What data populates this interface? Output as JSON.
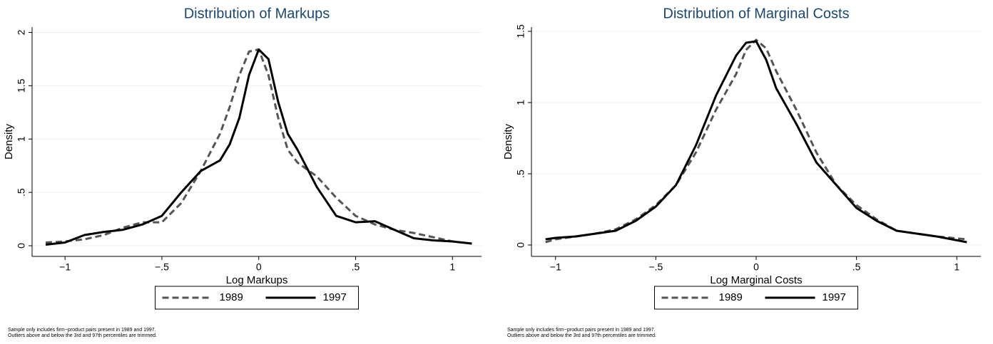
{
  "chart_data": [
    {
      "type": "line",
      "title": "Distribution of Markups",
      "x_label": "Log Markups",
      "y_label": "Density",
      "x": [
        -1.1,
        -1,
        -0.9,
        -0.8,
        -0.7,
        -0.6,
        -0.5,
        -0.4,
        -0.3,
        -0.2,
        -0.15,
        -0.1,
        -0.05,
        0,
        0.05,
        0.1,
        0.15,
        0.2,
        0.3,
        0.4,
        0.5,
        0.6,
        0.7,
        0.8,
        0.9,
        1,
        1.1
      ],
      "series": [
        {
          "name": "1989",
          "color": "#555555",
          "dashed": true,
          "values": [
            0.03,
            0.04,
            0.06,
            0.1,
            0.17,
            0.22,
            0.22,
            0.4,
            0.7,
            1.05,
            1.3,
            1.6,
            1.82,
            1.84,
            1.6,
            1.2,
            0.9,
            0.78,
            0.65,
            0.45,
            0.28,
            0.2,
            0.15,
            0.12,
            0.08,
            0.04,
            0.02
          ]
        },
        {
          "name": "1997",
          "color": "#000000",
          "dashed": false,
          "values": [
            0.01,
            0.03,
            0.1,
            0.13,
            0.15,
            0.2,
            0.28,
            0.5,
            0.7,
            0.8,
            0.95,
            1.2,
            1.6,
            1.84,
            1.75,
            1.35,
            1.05,
            0.9,
            0.55,
            0.28,
            0.22,
            0.23,
            0.15,
            0.07,
            0.05,
            0.04,
            0.02
          ]
        }
      ],
      "xlim": [
        -1.17,
        1.15
      ],
      "xticks": [
        {
          "value": -1,
          "label": "−1"
        },
        {
          "value": -0.5,
          "label": "−.5"
        },
        0,
        {
          "value": 0.5,
          "label": ".5"
        },
        1
      ],
      "ylim": [
        -0.1,
        2.05
      ],
      "yticks": [
        0,
        {
          "value": 0.5,
          "label": ".5"
        },
        1,
        {
          "value": 1.5,
          "label": "1.5"
        },
        2
      ],
      "grid": true,
      "legend": "bottom",
      "notes": [
        "Sample only includes firm−product pairs present in 1989 and 1997.",
        "Outliers above and below the 3rd and 97th percentiles are trimmed."
      ]
    },
    {
      "type": "line",
      "title": "Distribution of Marginal Costs",
      "x_label": "Log Marginal Costs",
      "y_label": "Density",
      "x": [
        -1.05,
        -1,
        -0.9,
        -0.8,
        -0.7,
        -0.6,
        -0.5,
        -0.4,
        -0.3,
        -0.2,
        -0.1,
        -0.05,
        0,
        0.05,
        0.1,
        0.2,
        0.3,
        0.4,
        0.5,
        0.6,
        0.7,
        0.8,
        0.9,
        1.05
      ],
      "series": [
        {
          "name": "1989",
          "color": "#555555",
          "dashed": true,
          "values": [
            0.02,
            0.04,
            0.06,
            0.08,
            0.11,
            0.18,
            0.28,
            0.42,
            0.65,
            0.95,
            1.2,
            1.37,
            1.44,
            1.38,
            1.22,
            0.95,
            0.65,
            0.42,
            0.28,
            0.18,
            0.1,
            0.08,
            0.06,
            0.04
          ]
        },
        {
          "name": "1997",
          "color": "#000000",
          "dashed": false,
          "values": [
            0.04,
            0.05,
            0.06,
            0.08,
            0.1,
            0.17,
            0.27,
            0.42,
            0.7,
            1.05,
            1.33,
            1.42,
            1.43,
            1.3,
            1.1,
            0.85,
            0.58,
            0.42,
            0.26,
            0.17,
            0.1,
            0.08,
            0.06,
            0.02
          ]
        }
      ],
      "xlim": [
        -1.12,
        1.12
      ],
      "xticks": [
        {
          "value": -1,
          "label": "−1"
        },
        {
          "value": -0.5,
          "label": "−.5"
        },
        0,
        {
          "value": 0.5,
          "label": ".5"
        },
        1
      ],
      "ylim": [
        -0.08,
        1.53
      ],
      "yticks": [
        0,
        {
          "value": 0.5,
          "label": ".5"
        },
        1,
        {
          "value": 1.5,
          "label": "1.5"
        }
      ],
      "grid": true,
      "legend": "bottom",
      "notes": [
        "Sample only includes firm−product pairs present in 1989 and 1997.",
        "Outliers above and below the 3rd and 97th percentiles are trimmed."
      ]
    }
  ]
}
